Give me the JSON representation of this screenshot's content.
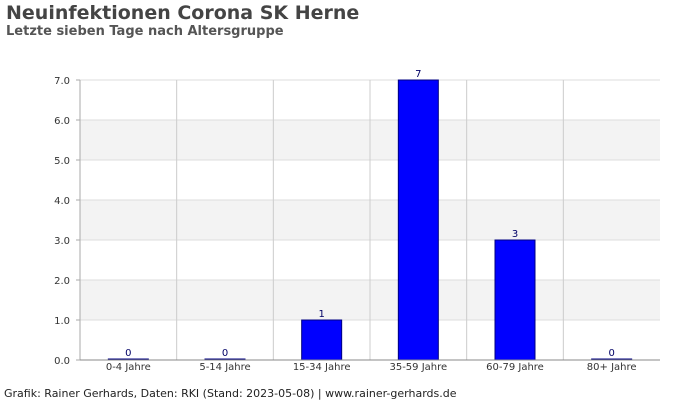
{
  "header": {
    "title": "Neuinfektionen Corona SK Herne",
    "subtitle": "Letzte sieben Tage nach Altersgruppe"
  },
  "footer": {
    "text": "Grafik: Rainer Gerhards, Daten: RKI (Stand: 2023-05-08) | www.rainer-gerhards.de"
  },
  "chart_data": {
    "type": "bar",
    "title": "Neuinfektionen Corona SK Herne",
    "subtitle": "Letzte sieben Tage nach Altersgruppe",
    "categories": [
      "0-4 Jahre",
      "5-14 Jahre",
      "15-34 Jahre",
      "35-59 Jahre",
      "60-79 Jahre",
      "80+ Jahre"
    ],
    "values": [
      0,
      0,
      1,
      7,
      3,
      0
    ],
    "value_labels": [
      "0",
      "0",
      "1",
      "7",
      "3",
      "0"
    ],
    "ylim": [
      0,
      7
    ],
    "yticks": [
      "0.0",
      "1.0",
      "2.0",
      "3.0",
      "4.0",
      "5.0",
      "6.0",
      "7.0"
    ],
    "xlabel": "",
    "ylabel": "",
    "grid": true,
    "bar_color": "#0000ff",
    "bar_edge_color": "#000080",
    "band_color": "#f3f3f3"
  }
}
